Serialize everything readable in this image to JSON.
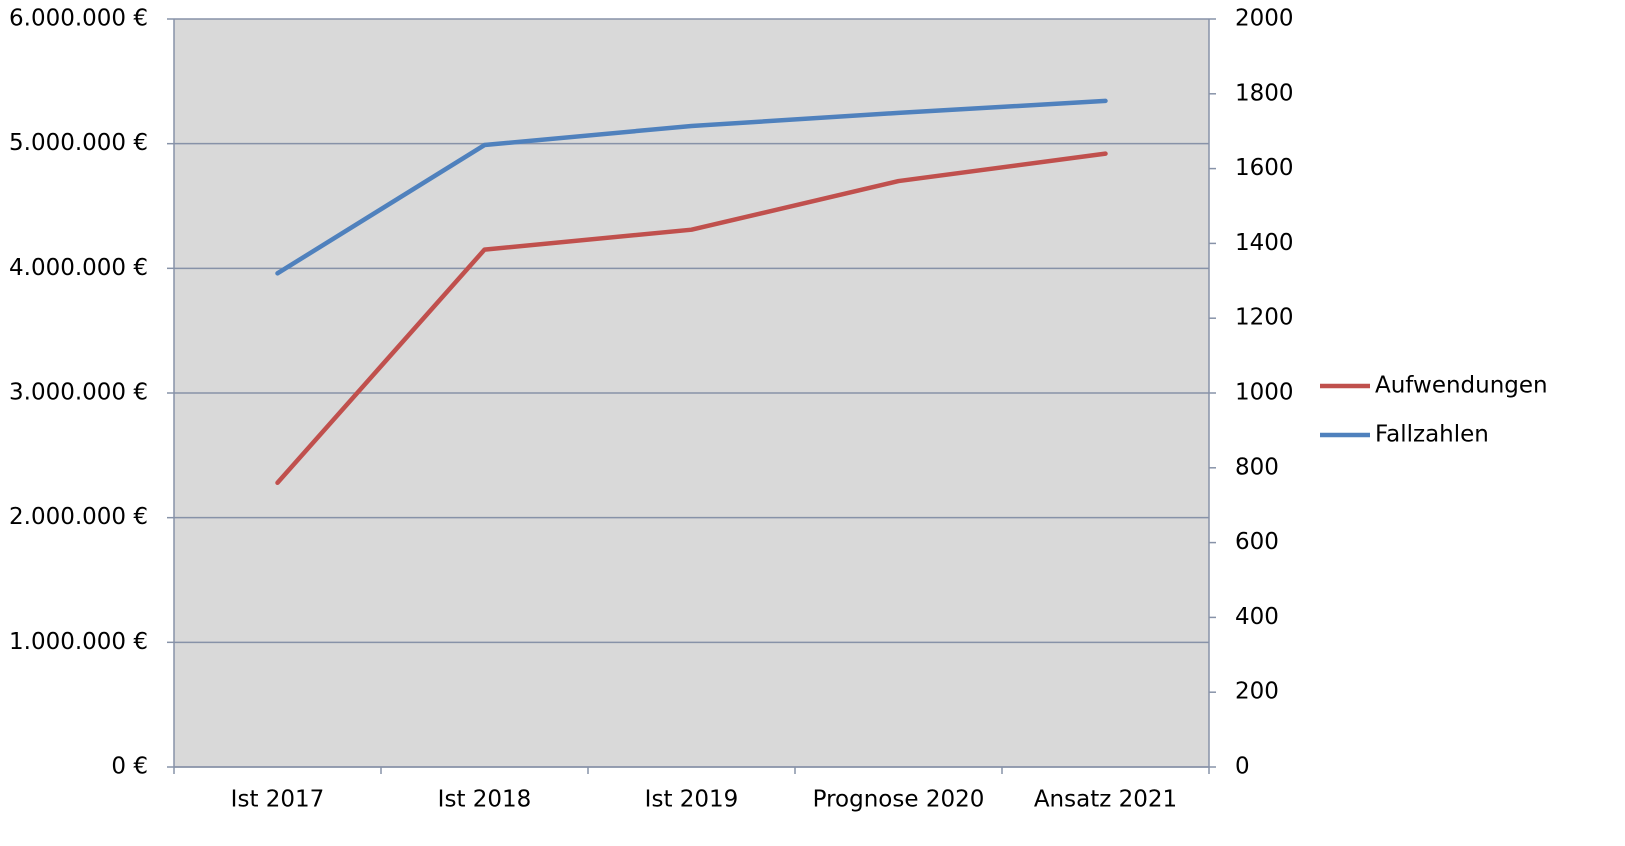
{
  "chart_data": {
    "type": "line",
    "categories": [
      "Ist 2017",
      "Ist 2018",
      "Ist 2019",
      "Prognose 2020",
      "Ansatz 2021"
    ],
    "series": [
      {
        "name": "Aufwendungen",
        "color": "#c0504d",
        "values": [
          2280000,
          4150000,
          4310000,
          4700000,
          4920000
        ]
      },
      {
        "name": "Fallzahlen",
        "color": "#4f81bd",
        "axis": "y2",
        "values": [
          1320,
          1663,
          1714,
          1749,
          1781
        ]
      }
    ],
    "ylim": [
      0,
      6000000
    ],
    "yticks": [
      {
        "value": 0,
        "label": "0 €"
      },
      {
        "value": 1000000,
        "label": "1.000.000 €"
      },
      {
        "value": 2000000,
        "label": "2.000.000 €"
      },
      {
        "value": 3000000,
        "label": "3.000.000 €"
      },
      {
        "value": 4000000,
        "label": "4.000.000 €"
      },
      {
        "value": 5000000,
        "label": "5.000.000 €"
      },
      {
        "value": 6000000,
        "label": "6.000.000 €"
      }
    ],
    "y2lim": [
      0,
      2000
    ],
    "y2ticks": [
      0,
      200,
      400,
      600,
      800,
      1000,
      1200,
      1400,
      1600,
      1800,
      2000
    ],
    "grid": true,
    "legend": "right"
  }
}
